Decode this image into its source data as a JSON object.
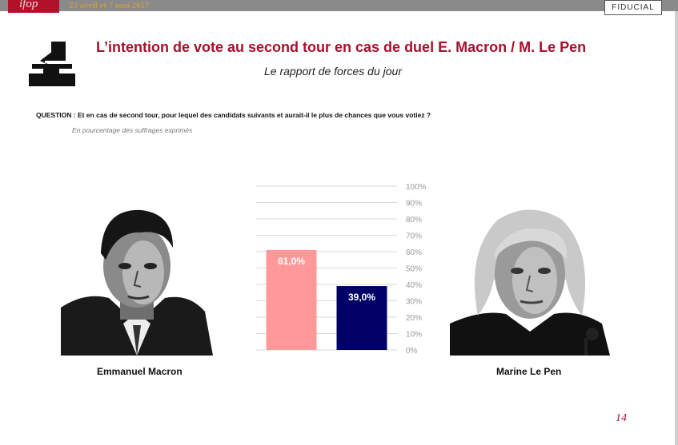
{
  "header": {
    "logo_text": "ifop",
    "dates": "23 avril et 7 mai 2017",
    "brand": "FIDUCIAL"
  },
  "title": "L’intention de vote au second tour en cas de duel E. Macron / M. Le Pen",
  "subtitle": "Le rapport de forces du jour",
  "question": "QUESTION : Et en cas de second tour, pour lequel des candidats suivants et aurait-il le plus de chances que vous votiez ?",
  "note": "En pourcentage des suffrages exprimés",
  "icons": {
    "ballot": "ballot-box-icon"
  },
  "candidates": {
    "left": {
      "name": "Emmanuel Macron"
    },
    "right": {
      "name": "Marine Le Pen"
    }
  },
  "chart_data": {
    "type": "bar",
    "categories": [
      "Emmanuel Macron",
      "Marine Le Pen"
    ],
    "values": [
      61.0,
      39.0
    ],
    "value_labels": [
      "61,0%",
      "39,0%"
    ],
    "colors": [
      "#ff9999",
      "#000066"
    ],
    "ylim": [
      0,
      100
    ],
    "y_ticks": [
      "0%",
      "10%",
      "20%",
      "30%",
      "40%",
      "50%",
      "60%",
      "70%",
      "80%",
      "90%",
      "100%"
    ],
    "grid": true,
    "axis_side": "right"
  },
  "page_number": "14"
}
